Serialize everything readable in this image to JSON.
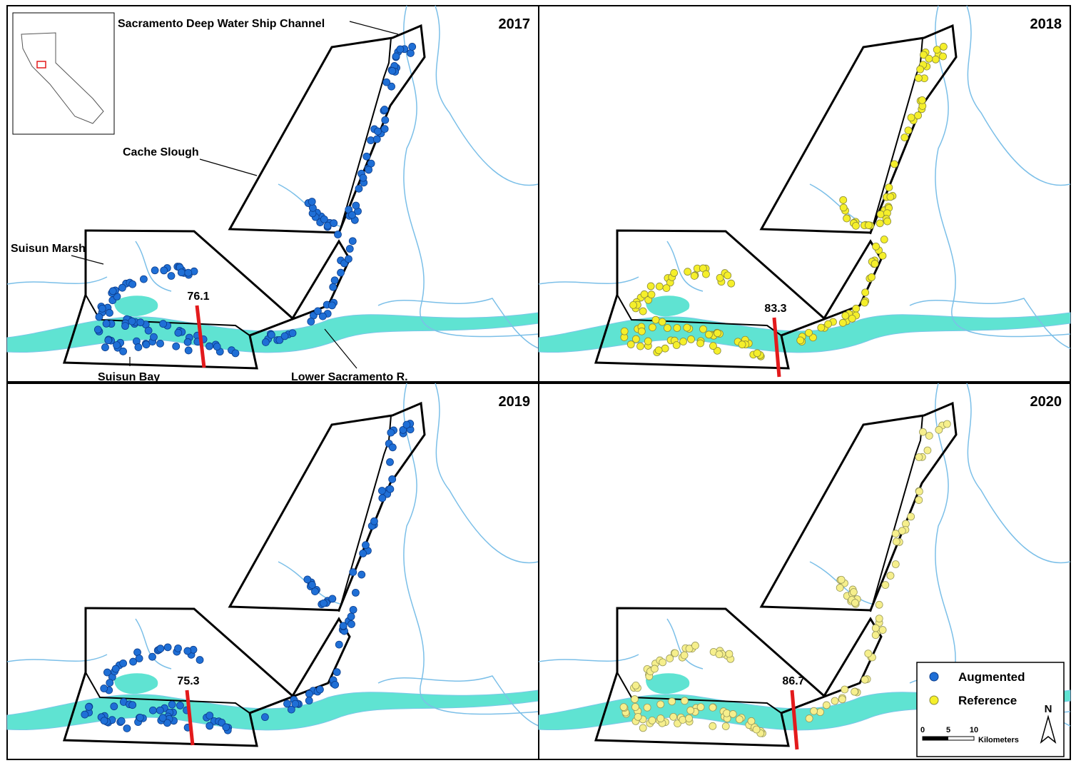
{
  "panels": [
    {
      "year": "2017",
      "value_label": "76.1"
    },
    {
      "year": "2018",
      "value_label": "83.3"
    },
    {
      "year": "2019",
      "value_label": "75.3"
    },
    {
      "year": "2020",
      "value_label": "86.7"
    }
  ],
  "annotations": {
    "ship_channel": "Sacramento Deep Water Ship Channel",
    "cache_slough": "Cache Slough",
    "suisun_marsh": "Suisun Marsh",
    "suisun_bay": "Suisun Bay",
    "lower_sac": "Lower Sacramento R."
  },
  "legend": {
    "augmented": "Augmented",
    "reference": "Reference"
  },
  "scale": {
    "ticks": [
      "0",
      "5",
      "10"
    ],
    "unit": "Kilometers"
  },
  "north": "N"
}
